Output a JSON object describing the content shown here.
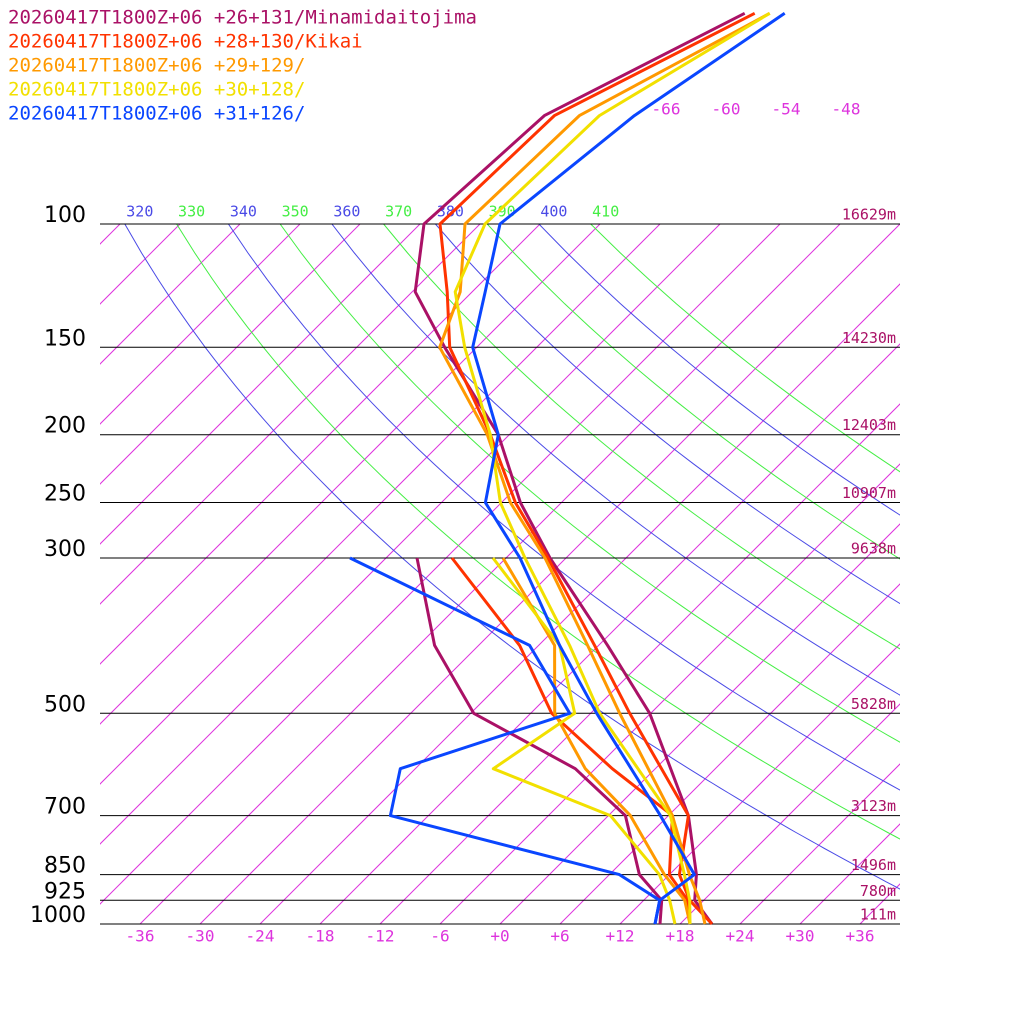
{
  "chart_data": {
    "type": "skewt",
    "xlim": [
      -40,
      40
    ],
    "ylim": [
      1000,
      100
    ],
    "log_y": true,
    "skew_deg": 45,
    "xticks": [
      -36,
      -30,
      -24,
      -18,
      -12,
      -6,
      {
        "value": 0,
        "label": "+0"
      },
      {
        "value": 6,
        "label": "+6"
      },
      {
        "value": 12,
        "label": "+12"
      },
      {
        "value": 18,
        "label": "+18"
      },
      {
        "value": 24,
        "label": "+24"
      },
      {
        "value": 30,
        "label": "+30"
      },
      {
        "value": 36,
        "label": "+36"
      }
    ],
    "top_xticks": [
      -66,
      -60,
      -54,
      -48
    ],
    "yticks": [
      100,
      150,
      200,
      250,
      300,
      500,
      700,
      850,
      925,
      1000
    ],
    "height_labels": [
      "16629m",
      "14230m",
      "12403m",
      "10907m",
      "9638m",
      "5828m",
      "3123m",
      "1496m",
      "780m",
      "111m"
    ],
    "theta_labels": [
      320,
      330,
      340,
      350,
      360,
      370,
      380,
      390,
      400,
      410
    ],
    "theta_colors": [
      "#4a4ae6",
      "#44ee44"
    ],
    "isotherm_color": "#dd33dd",
    "pressure_levels": [
      1000,
      925,
      850,
      700,
      500,
      400,
      300,
      250,
      200,
      150,
      125,
      100,
      70,
      50
    ],
    "dewpoint_levels": [
      1000,
      925,
      850,
      700,
      600,
      500,
      400,
      300
    ],
    "series": [
      {
        "name": "20260417T1800Z+06 +26+131/Minamidaitojima",
        "color": "#aa1166",
        "temperature": [
          21.2,
          17.1,
          14.7,
          8.0,
          -6.1,
          -17.1,
          -31.6,
          -40.1,
          -49.1,
          -63.2,
          -71.7,
          -77.6,
          -76.4,
          -66.6
        ],
        "dewpoint": [
          16,
          13.8,
          9,
          1.7,
          -8,
          -23.7,
          -34.4,
          -44.9
        ]
      },
      {
        "name": "20260417T1800Z+06 +28+130/Kikai",
        "color": "#ff3300",
        "temperature": [
          21.2,
          16.6,
          13,
          8.0,
          -8.1,
          -18.4,
          -31.8,
          -40.6,
          -49.9,
          -62.7,
          -68.5,
          -76,
          -75.4,
          -65.6
        ],
        "dewpoint": [
          19,
          16.4,
          12,
          6.4,
          -4.3,
          -15.9,
          -25.9,
          -41.4
        ]
      },
      {
        "name": "20260417T1800Z+06 +29+129/",
        "color": "#ff9900",
        "temperature": [
          20.5,
          17.6,
          14,
          6.4,
          -9.1,
          -19.1,
          -32.1,
          -41.1,
          -50.2,
          -63.7,
          -67.2,
          -73.5,
          -72.9,
          -64.1
        ],
        "dewpoint": [
          19,
          16.1,
          11.5,
          2.2,
          -7,
          -15.6,
          -22.4,
          -36.3
        ]
      },
      {
        "name": "20260417T1800Z+06 +30+128/",
        "color": "#f2e000",
        "temperature": [
          19,
          16.6,
          13.5,
          6.2,
          -11.1,
          -20.9,
          -34.1,
          -42.1,
          -49.9,
          -61.2,
          -67.7,
          -71.5,
          -70.9,
          -64.1
        ],
        "dewpoint": [
          17.5,
          14.6,
          11,
          0.2,
          -16.2,
          -13.6,
          -21.9,
          -37.3
        ]
      },
      {
        "name": "20260417T1800Z+06 +31+126/",
        "color": "#0a46ff",
        "temperature": [
          15.5,
          13.6,
          14.5,
          5.2,
          -11.4,
          -21.9,
          -34.6,
          -43.6,
          -49.1,
          -60.4,
          -64.7,
          -70,
          -67.4,
          -62.6
        ],
        "dewpoint": [
          15.5,
          13.6,
          7,
          -21.8,
          -25.5,
          -14.1,
          -24.9,
          -51.6
        ]
      }
    ]
  }
}
